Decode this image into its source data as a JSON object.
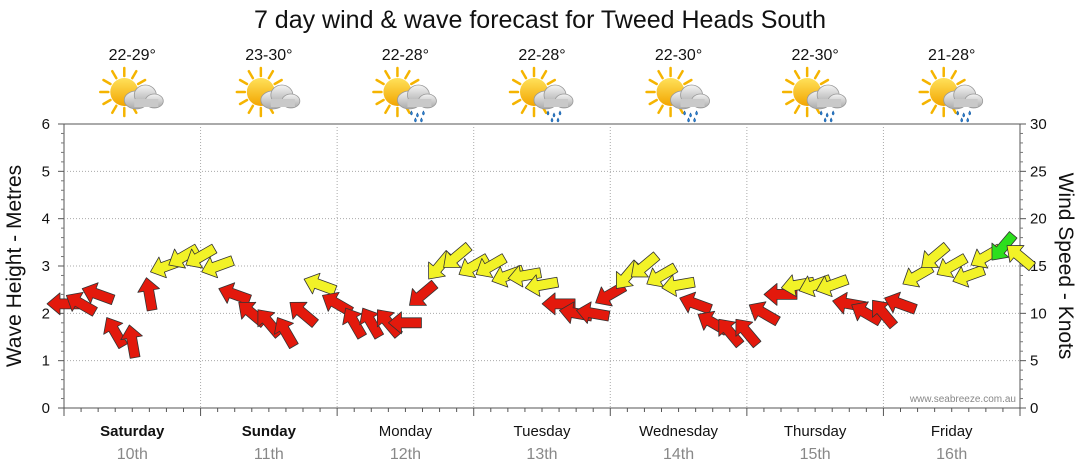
{
  "chart_data": {
    "type": "line",
    "title": "7 day wind & wave forecast for Tweed Heads South",
    "ylabel_left": "Wave Height - Metres",
    "ylabel_right": "Wind Speed - Knots",
    "ylim_left": [
      0,
      6
    ],
    "ylim_right": [
      0,
      30
    ],
    "yticks_left": [
      "0",
      "1",
      "2",
      "3",
      "4",
      "5",
      "6"
    ],
    "yticks_right": [
      "0",
      "5",
      "10",
      "15",
      "20",
      "25",
      "30"
    ],
    "grid": true,
    "days": [
      {
        "name": "Saturday",
        "date": "10th",
        "temp": "22-29°",
        "weather": "sun-cloud-icon",
        "bold": true
      },
      {
        "name": "Sunday",
        "date": "11th",
        "temp": "23-30°",
        "weather": "sun-cloud-icon",
        "bold": true
      },
      {
        "name": "Monday",
        "date": "12th",
        "temp": "22-28°",
        "weather": "sun-rain-icon",
        "bold": false
      },
      {
        "name": "Tuesday",
        "date": "13th",
        "temp": "22-28°",
        "weather": "sun-rain-icon",
        "bold": false
      },
      {
        "name": "Wednesday",
        "date": "14th",
        "temp": "22-30°",
        "weather": "sun-rain-icon",
        "bold": false
      },
      {
        "name": "Thursday",
        "date": "15th",
        "temp": "22-30°",
        "weather": "sun-rain-icon",
        "bold": false
      },
      {
        "name": "Friday",
        "date": "16th",
        "temp": "21-28°",
        "weather": "sun-rain-icon",
        "bold": false
      }
    ],
    "series": [
      {
        "name": "Wind Speed (knots)",
        "x_hours": [
          0,
          3,
          6,
          9,
          12,
          15,
          18,
          21,
          24,
          27,
          30,
          33,
          36,
          39,
          42,
          45,
          48,
          51,
          54,
          57,
          60,
          63,
          66,
          69,
          72,
          75,
          78,
          81,
          84,
          87,
          90,
          93,
          96,
          99,
          102,
          105,
          108,
          111,
          114,
          117,
          120,
          123,
          126,
          129,
          132,
          135,
          138,
          141,
          144,
          147,
          150,
          153,
          156,
          159,
          162,
          165,
          168
        ],
        "values": [
          11,
          11,
          12,
          8,
          7,
          12,
          15,
          16,
          16,
          15,
          12,
          10,
          9,
          8,
          10,
          13,
          11,
          9,
          9,
          9,
          9,
          12,
          15,
          16,
          15,
          15,
          14,
          14,
          13,
          11,
          10,
          10,
          12,
          14,
          15,
          14,
          13,
          11,
          9,
          8,
          8,
          10,
          12,
          13,
          13,
          13,
          11,
          10,
          10,
          11,
          14,
          16,
          15,
          14,
          16,
          17,
          16
        ]
      }
    ],
    "wind_directions_deg": [
      90,
      120,
      110,
      150,
      170,
      170,
      70,
      60,
      60,
      70,
      110,
      130,
      140,
      150,
      130,
      110,
      120,
      150,
      150,
      140,
      90,
      50,
      40,
      50,
      60,
      60,
      70,
      80,
      80,
      90,
      100,
      100,
      60,
      40,
      50,
      60,
      80,
      110,
      120,
      140,
      140,
      120,
      90,
      80,
      70,
      70,
      100,
      120,
      140,
      110,
      60,
      50,
      60,
      70,
      60,
      40,
      130
    ],
    "color_legend": {
      "red": "#e3190c",
      "yellow": "#f2f227",
      "green": "#2cdf1d"
    },
    "credit": "www.seabreeze.com.au"
  }
}
